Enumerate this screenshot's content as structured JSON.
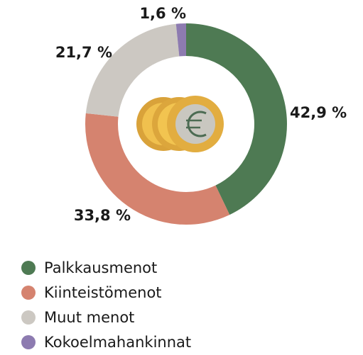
{
  "chart_data": {
    "type": "donut",
    "categories": [
      "Palkkausmenot",
      "Kiinteistömenot",
      "Muut menot",
      "Kokoelmahankinnat"
    ],
    "values": [
      42.9,
      33.8,
      21.7,
      1.6
    ],
    "value_labels": [
      "42,9 %",
      "33,8 %",
      "21,7 %",
      "1,6 %"
    ],
    "colors": [
      "#4e7a53",
      "#d5836f",
      "#ccc8c2",
      "#8d7bb0"
    ]
  }
}
